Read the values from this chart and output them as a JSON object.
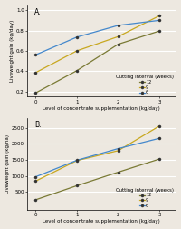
{
  "top": {
    "label": "A.",
    "xlabel": "Level of concentrate supplementation (kg/day)",
    "ylabel": "Liveweight gain (kg/day)",
    "ylim": [
      0.15,
      1.05
    ],
    "yticks": [
      0.2,
      0.4,
      0.6,
      0.8,
      1.0
    ],
    "xlim": [
      -0.2,
      3.4
    ],
    "xticks": [
      0,
      1,
      2,
      3
    ],
    "series": [
      {
        "label": "12",
        "x": [
          0,
          1,
          2,
          3
        ],
        "y": [
          0.185,
          0.405,
          0.665,
          0.795
        ],
        "color": "#7a7a35"
      },
      {
        "label": "9",
        "x": [
          0,
          1,
          2,
          3
        ],
        "y": [
          0.385,
          0.6,
          0.74,
          0.945
        ],
        "color": "#c8a820"
      },
      {
        "label": "6",
        "x": [
          0,
          1,
          2,
          3
        ],
        "y": [
          0.56,
          0.735,
          0.85,
          0.9
        ],
        "color": "#4488cc"
      }
    ],
    "legend_title": "Cutting interval (weeks)"
  },
  "bottom": {
    "label": "B.",
    "xlabel": "Level of concentrate supplementation (kg/day)",
    "ylabel": "Liveweight gain (kg/ha)",
    "ylim": [
      -50,
      2800
    ],
    "yticks": [
      500,
      1000,
      1500,
      2000,
      2500
    ],
    "xlim": [
      -0.2,
      3.4
    ],
    "xticks": [
      0,
      1,
      2,
      3
    ],
    "series": [
      {
        "label": "12",
        "x": [
          0,
          1,
          2,
          3
        ],
        "y": [
          260,
          700,
          1120,
          1530
        ],
        "color": "#7a7a35"
      },
      {
        "label": "9",
        "x": [
          0,
          1,
          2,
          3
        ],
        "y": [
          840,
          1480,
          1790,
          2560
        ],
        "color": "#c8a820"
      },
      {
        "label": "6",
        "x": [
          0,
          1,
          2,
          3
        ],
        "y": [
          975,
          1490,
          1855,
          2175
        ],
        "color": "#4488cc"
      }
    ],
    "legend_title": "Cutting interval (weeks)"
  },
  "bg_color": "#ede8e0",
  "grid_color": "#ffffff",
  "line_width": 0.9,
  "marker_size": 2.2,
  "marker_color": "#333333",
  "label_fontsize": 4.0,
  "tick_fontsize": 4.0,
  "legend_fontsize": 3.6,
  "legend_title_fontsize": 3.8,
  "subplot_label_fontsize": 5.5
}
